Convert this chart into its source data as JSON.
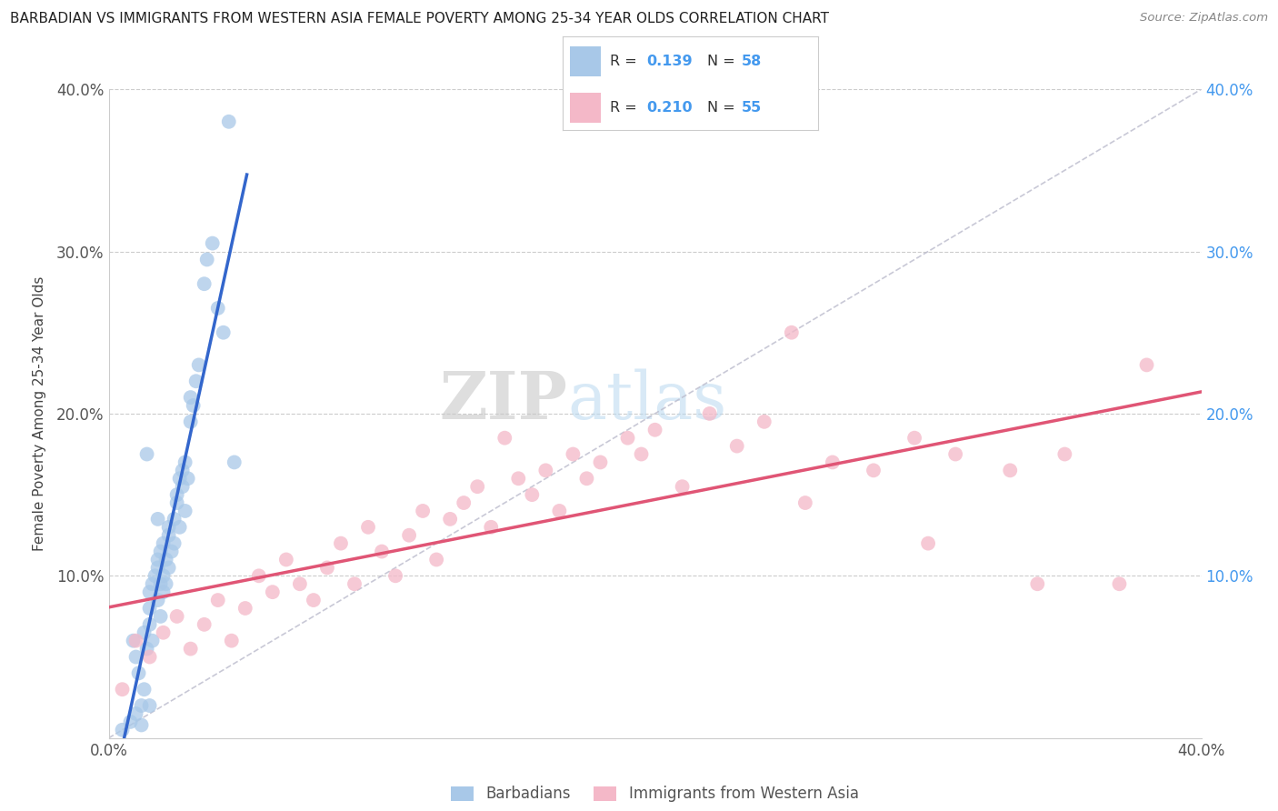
{
  "title": "BARBADIAN VS IMMIGRANTS FROM WESTERN ASIA FEMALE POVERTY AMONG 25-34 YEAR OLDS CORRELATION CHART",
  "source": "Source: ZipAtlas.com",
  "ylabel": "Female Poverty Among 25-34 Year Olds",
  "xlim": [
    0.0,
    0.4
  ],
  "ylim": [
    0.0,
    0.4
  ],
  "blue_R": 0.139,
  "blue_N": 58,
  "pink_R": 0.21,
  "pink_N": 55,
  "blue_color": "#a8c8e8",
  "pink_color": "#f4b8c8",
  "blue_line_color": "#3366cc",
  "pink_line_color": "#e05575",
  "diag_color": "#bbbbcc",
  "grid_color": "#cccccc",
  "background_color": "#ffffff",
  "blue_scatter_x": [
    0.005,
    0.008,
    0.01,
    0.01,
    0.012,
    0.012,
    0.013,
    0.013,
    0.014,
    0.015,
    0.015,
    0.015,
    0.015,
    0.016,
    0.016,
    0.017,
    0.018,
    0.018,
    0.018,
    0.019,
    0.019,
    0.019,
    0.02,
    0.02,
    0.02,
    0.021,
    0.021,
    0.022,
    0.022,
    0.022,
    0.023,
    0.024,
    0.024,
    0.025,
    0.025,
    0.026,
    0.026,
    0.027,
    0.027,
    0.028,
    0.028,
    0.029,
    0.03,
    0.03,
    0.031,
    0.032,
    0.033,
    0.035,
    0.036,
    0.038,
    0.04,
    0.042,
    0.044,
    0.046,
    0.018,
    0.014,
    0.009,
    0.011
  ],
  "blue_scatter_y": [
    0.005,
    0.01,
    0.015,
    0.05,
    0.008,
    0.02,
    0.065,
    0.03,
    0.055,
    0.07,
    0.08,
    0.09,
    0.02,
    0.06,
    0.095,
    0.1,
    0.085,
    0.105,
    0.11,
    0.075,
    0.095,
    0.115,
    0.09,
    0.1,
    0.12,
    0.095,
    0.11,
    0.13,
    0.105,
    0.125,
    0.115,
    0.135,
    0.12,
    0.145,
    0.15,
    0.16,
    0.13,
    0.165,
    0.155,
    0.14,
    0.17,
    0.16,
    0.195,
    0.21,
    0.205,
    0.22,
    0.23,
    0.28,
    0.295,
    0.305,
    0.265,
    0.25,
    0.38,
    0.17,
    0.135,
    0.175,
    0.06,
    0.04
  ],
  "pink_scatter_x": [
    0.005,
    0.01,
    0.015,
    0.02,
    0.025,
    0.03,
    0.035,
    0.04,
    0.045,
    0.05,
    0.055,
    0.06,
    0.065,
    0.07,
    0.075,
    0.08,
    0.085,
    0.09,
    0.095,
    0.1,
    0.105,
    0.11,
    0.115,
    0.12,
    0.125,
    0.13,
    0.135,
    0.14,
    0.15,
    0.155,
    0.16,
    0.165,
    0.17,
    0.175,
    0.18,
    0.19,
    0.195,
    0.2,
    0.21,
    0.22,
    0.23,
    0.24,
    0.25,
    0.265,
    0.28,
    0.295,
    0.31,
    0.33,
    0.35,
    0.37,
    0.38,
    0.145,
    0.255,
    0.3,
    0.34
  ],
  "pink_scatter_y": [
    0.03,
    0.06,
    0.05,
    0.065,
    0.075,
    0.055,
    0.07,
    0.085,
    0.06,
    0.08,
    0.1,
    0.09,
    0.11,
    0.095,
    0.085,
    0.105,
    0.12,
    0.095,
    0.13,
    0.115,
    0.1,
    0.125,
    0.14,
    0.11,
    0.135,
    0.145,
    0.155,
    0.13,
    0.16,
    0.15,
    0.165,
    0.14,
    0.175,
    0.16,
    0.17,
    0.185,
    0.175,
    0.19,
    0.155,
    0.2,
    0.18,
    0.195,
    0.25,
    0.17,
    0.165,
    0.185,
    0.175,
    0.165,
    0.175,
    0.095,
    0.23,
    0.185,
    0.145,
    0.12,
    0.095
  ]
}
